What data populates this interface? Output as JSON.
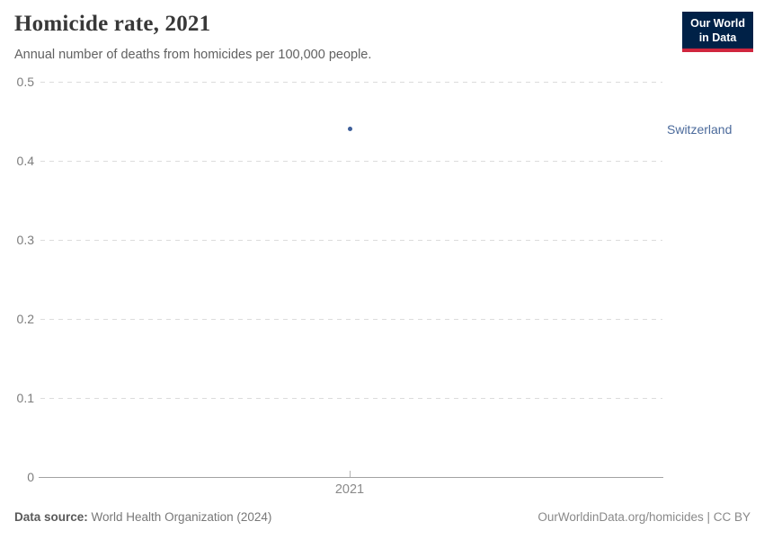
{
  "header": {
    "title": "Homicide rate, 2021",
    "subtitle": "Annual number of deaths from homicides per 100,000 people.",
    "logo": {
      "line1": "Our World",
      "line2": "in Data",
      "background_color": "#002147",
      "accent_color": "#d0263e"
    }
  },
  "chart_data": {
    "type": "scatter",
    "title": "Homicide rate, 2021",
    "subtitle": "Annual number of deaths from homicides per 100,000 people.",
    "x": [
      2021
    ],
    "series": [
      {
        "name": "Switzerland",
        "x": [
          2021
        ],
        "y": [
          0.44
        ],
        "color": "#3d5e9a",
        "label_color": "#4b6a9b"
      }
    ],
    "xlabel": "",
    "ylabel": "",
    "x_ticks": [
      "2021"
    ],
    "y_ticks": [
      "0",
      "0.1",
      "0.2",
      "0.3",
      "0.4",
      "0.5"
    ],
    "ylim": [
      0,
      0.5
    ],
    "grid": "horizontal-dashed",
    "legend_position": "right-of-point"
  },
  "footer": {
    "datasource_label": "Data source:",
    "datasource_value": " World Health Organization (2024)",
    "attribution": "OurWorldinData.org/homicides | CC BY"
  }
}
